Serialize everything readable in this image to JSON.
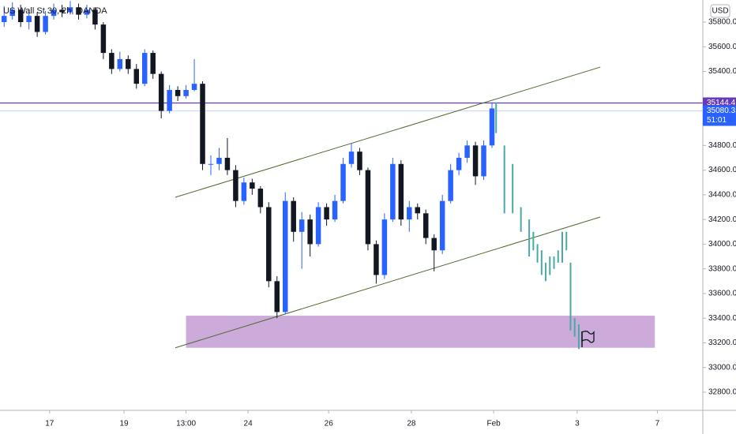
{
  "chart_data": {
    "type": "candlestick",
    "title": "US Wall St 30, 2h, OANDA",
    "currency": "USD",
    "xlim": [
      0,
      170
    ],
    "ylim": [
      32653,
      35979
    ],
    "xticks": [
      {
        "value": 12,
        "label": "17"
      },
      {
        "value": 30,
        "label": "19"
      },
      {
        "value": 45,
        "label": "13:00"
      },
      {
        "value": 60,
        "label": "24"
      },
      {
        "value": 79.5,
        "label": "26"
      },
      {
        "value": 99.5,
        "label": "28"
      },
      {
        "value": 119.4,
        "label": "Feb"
      },
      {
        "value": 139.6,
        "label": "3"
      },
      {
        "value": 159,
        "label": "7"
      }
    ],
    "yticks": [
      {
        "value": 35800,
        "label": "35800.0"
      },
      {
        "value": 35600,
        "label": "35600.0"
      },
      {
        "value": 35400,
        "label": "35400.0"
      },
      {
        "value": 34800,
        "label": "34800.0"
      },
      {
        "value": 34600,
        "label": "34600.0"
      },
      {
        "value": 34400,
        "label": "34400.0"
      },
      {
        "value": 34200,
        "label": "34200.0"
      },
      {
        "value": 34000,
        "label": "34000.0"
      },
      {
        "value": 33800,
        "label": "33800.0"
      },
      {
        "value": 33600,
        "label": "33600.0"
      },
      {
        "value": 33400,
        "label": "33400.0"
      },
      {
        "value": 33200,
        "label": "33200.0"
      },
      {
        "value": 33000,
        "label": "33000.0"
      },
      {
        "value": 32800,
        "label": "32800.0"
      }
    ],
    "up_color": "#2962ff",
    "down_color": "#131722",
    "candles": {
      "x": [
        1,
        3,
        5,
        7,
        9,
        11,
        13,
        15,
        17,
        19,
        21,
        23,
        25,
        27,
        29,
        31,
        33,
        35,
        37,
        39,
        41,
        43,
        45,
        47,
        49,
        51,
        53,
        55,
        57,
        59,
        61,
        63,
        65,
        67,
        69,
        71,
        73,
        75,
        77,
        79,
        81,
        83,
        85,
        87,
        89,
        91,
        93,
        95,
        97,
        99,
        101,
        103,
        105,
        107,
        109,
        111,
        113,
        115,
        117,
        119
      ],
      "ohlc": [
        [
          35800,
          35930,
          35760,
          35850
        ],
        [
          35850,
          35960,
          35820,
          35900
        ],
        [
          35900,
          35940,
          35760,
          35800
        ],
        [
          35800,
          35900,
          35740,
          35850
        ],
        [
          35850,
          35880,
          35680,
          35720
        ],
        [
          35720,
          35890,
          35700,
          35850
        ],
        [
          35850,
          35950,
          35820,
          35900
        ],
        [
          35900,
          35940,
          35840,
          35880
        ],
        [
          35880,
          35970,
          35860,
          35920
        ],
        [
          35920,
          35950,
          35820,
          35860
        ],
        [
          35860,
          35940,
          35830,
          35900
        ],
        [
          35900,
          35920,
          35740,
          35780
        ],
        [
          35780,
          35800,
          35500,
          35550
        ],
        [
          35550,
          35580,
          35380,
          35420
        ],
        [
          35420,
          35560,
          35400,
          35500
        ],
        [
          35500,
          35530,
          35380,
          35420
        ],
        [
          35420,
          35460,
          35260,
          35300
        ],
        [
          35300,
          35580,
          35280,
          35550
        ],
        [
          35550,
          35570,
          35340,
          35380
        ],
        [
          35380,
          35400,
          35020,
          35080
        ],
        [
          35080,
          35290,
          35060,
          35250
        ],
        [
          35250,
          35280,
          35160,
          35200
        ],
        [
          35200,
          35290,
          35180,
          35250
        ],
        [
          35250,
          35500,
          35240,
          35300
        ],
        [
          35300,
          35320,
          34600,
          34650
        ],
        [
          34650,
          34720,
          34560,
          34650
        ],
        [
          34650,
          34780,
          34600,
          34700
        ],
        [
          34700,
          34860,
          34560,
          34600
        ],
        [
          34600,
          34640,
          34300,
          34350
        ],
        [
          34350,
          34540,
          34320,
          34500
        ],
        [
          34500,
          34530,
          34400,
          34450
        ],
        [
          34450,
          34470,
          34250,
          34300
        ],
        [
          34300,
          34340,
          33650,
          33700
        ],
        [
          33700,
          33740,
          33400,
          33450
        ],
        [
          33450,
          34420,
          33430,
          34350
        ],
        [
          34350,
          34380,
          34020,
          34100
        ],
        [
          34100,
          34260,
          33800,
          34200
        ],
        [
          34200,
          34240,
          33900,
          34000
        ],
        [
          34000,
          34340,
          33980,
          34300
        ],
        [
          34300,
          34330,
          34150,
          34200
        ],
        [
          34200,
          34400,
          34180,
          34350
        ],
        [
          34350,
          34700,
          34330,
          34650
        ],
        [
          34650,
          34820,
          34620,
          34750
        ],
        [
          34750,
          34780,
          34560,
          34600
        ],
        [
          34600,
          34620,
          33950,
          34000
        ],
        [
          34000,
          34030,
          33680,
          33750
        ],
        [
          33750,
          34250,
          33720,
          34200
        ],
        [
          34200,
          34700,
          34180,
          34650
        ],
        [
          34650,
          34680,
          34150,
          34200
        ],
        [
          34200,
          34350,
          34100,
          34300
        ],
        [
          34300,
          34330,
          34200,
          34250
        ],
        [
          34250,
          34280,
          34000,
          34050
        ],
        [
          34050,
          34080,
          33780,
          33950
        ],
        [
          33950,
          34400,
          33920,
          34350
        ],
        [
          34350,
          34650,
          34330,
          34600
        ],
        [
          34600,
          34740,
          34560,
          34700
        ],
        [
          34700,
          34840,
          34660,
          34800
        ],
        [
          34800,
          34830,
          34480,
          34550
        ],
        [
          34550,
          34840,
          34520,
          34800
        ],
        [
          34800,
          35150,
          34780,
          35100
        ]
      ]
    },
    "projection": {
      "color": "#4aa9a4",
      "x": [
        120,
        122,
        124,
        126,
        128,
        129,
        130,
        131,
        132,
        133,
        134,
        135,
        136,
        137,
        138,
        139,
        140
      ],
      "high": [
        35150,
        34800,
        34650,
        34300,
        34200,
        34100,
        34000,
        33950,
        33850,
        33900,
        33900,
        33950,
        34100,
        34100,
        33850,
        33400,
        33350
      ],
      "low": [
        34900,
        34250,
        34250,
        34100,
        33900,
        33950,
        33850,
        33750,
        33700,
        33750,
        33800,
        33850,
        33850,
        33950,
        33300,
        33250,
        33150
      ]
    },
    "zone": {
      "color": "#c39bd3",
      "x": [
        45,
        158.4
      ],
      "y": [
        33160,
        33420
      ]
    },
    "trendlines": [
      {
        "color": "#4e6b2e",
        "x": [
          42.4,
          145.2
        ],
        "y": [
          34380,
          35435
        ]
      },
      {
        "color": "#4e6b2e",
        "x": [
          42.4,
          145.2
        ],
        "y": [
          33160,
          34220
        ]
      }
    ],
    "price_lines": [
      {
        "value": 35144.4,
        "color": "#673ab7"
      },
      {
        "value": 35080.3,
        "color": "#2962ff",
        "countdown": "51:01"
      }
    ]
  }
}
